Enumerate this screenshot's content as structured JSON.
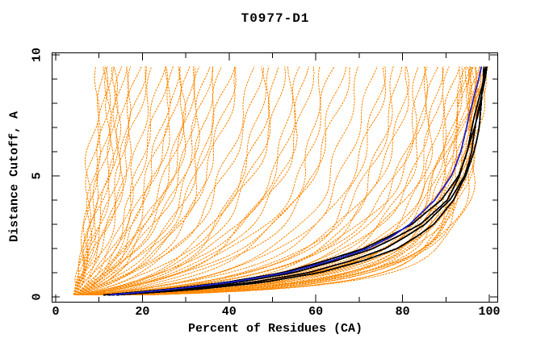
{
  "title": "T0977-D1",
  "x_axis": {
    "label": "Percent of Residues (CA)",
    "tick_labels": [
      "0",
      "20",
      "40",
      "60",
      "80",
      "100"
    ],
    "tick_values": [
      0,
      20,
      40,
      60,
      80,
      100
    ],
    "minor_tick_step": 10
  },
  "y_axis": {
    "label": "Distance Cutoff, A",
    "tick_labels": [
      "0",
      "5",
      "10"
    ],
    "tick_values": [
      0,
      5,
      10
    ],
    "minor_tick_step": 1
  },
  "colors": {
    "background": "#ffffff",
    "axis": "#000000",
    "model_curves": "#ff8800",
    "reference_curves": "#000000",
    "highlight_curve": "#2222cc"
  },
  "chart_data": {
    "type": "line",
    "title": "T0977-D1",
    "xlabel": "Percent of Residues (CA)",
    "ylabel": "Distance Cutoff, A",
    "xlim": [
      0,
      102
    ],
    "ylim": [
      0,
      10.3
    ],
    "x_major_ticks": [
      0,
      20,
      40,
      60,
      80,
      100
    ],
    "x_minor_step": 10,
    "y_major_ticks": [
      0,
      5,
      10
    ],
    "y_minor_step": 1,
    "grid": false,
    "legend": "none",
    "series": {
      "orange_model_curves": {
        "color": "#ff8800",
        "count": 87,
        "format": "[percent_reached_at_cutoff_9.6, shape_k] with x(y) = 4 + (end-4) * (y/(y+k)) * ((9.6+k)/9.6); curves fan out from (4, 0.1)",
        "curves": [
          [
            9.5,
            8
          ],
          [
            10.5,
            10
          ],
          [
            11,
            6
          ],
          [
            12,
            12
          ],
          [
            12.5,
            7
          ],
          [
            13,
            9
          ],
          [
            14,
            5
          ],
          [
            14.5,
            8
          ],
          [
            15.5,
            6
          ],
          [
            16,
            11
          ],
          [
            17,
            7
          ],
          [
            18,
            4.5
          ],
          [
            19,
            9
          ],
          [
            20,
            6
          ],
          [
            21,
            10
          ],
          [
            22,
            4
          ],
          [
            24,
            5
          ],
          [
            25,
            6
          ],
          [
            26,
            3
          ],
          [
            27,
            4.5
          ],
          [
            28,
            3.5
          ],
          [
            29,
            6
          ],
          [
            30,
            2.5
          ],
          [
            31,
            4
          ],
          [
            32,
            3
          ],
          [
            33,
            5
          ],
          [
            34,
            3.6
          ],
          [
            35,
            2.4
          ],
          [
            36,
            4.4
          ],
          [
            37,
            2.8
          ],
          [
            38,
            2.2
          ],
          [
            40,
            3.8
          ],
          [
            41,
            2.6
          ],
          [
            42,
            3.2
          ],
          [
            45,
            2.4
          ],
          [
            47,
            3
          ],
          [
            48,
            1.6
          ],
          [
            50,
            2.2
          ],
          [
            51,
            1.8
          ],
          [
            53,
            2.6
          ],
          [
            55,
            1.4
          ],
          [
            57,
            2
          ],
          [
            58,
            1.6
          ],
          [
            60,
            2.3
          ],
          [
            62,
            1.2
          ],
          [
            64,
            1.9
          ],
          [
            66,
            1.5
          ],
          [
            68,
            2.1
          ],
          [
            70,
            1.3
          ],
          [
            73,
            1.3
          ],
          [
            75,
            0.9
          ],
          [
            76,
            1.35
          ],
          [
            78,
            0.8
          ],
          [
            79,
            1.15
          ],
          [
            81,
            0.95
          ],
          [
            82,
            1.3
          ],
          [
            84,
            0.8
          ],
          [
            85,
            1.05
          ],
          [
            86,
            0.7
          ],
          [
            87,
            1.2
          ],
          [
            88,
            0.9
          ],
          [
            89,
            0.65
          ],
          [
            90,
            1
          ],
          [
            91,
            0.8
          ],
          [
            92,
            0.6
          ],
          [
            93,
            0.7
          ],
          [
            93.5,
            0.5
          ],
          [
            94,
            0.8
          ],
          [
            94.5,
            0.6
          ],
          [
            95,
            0.45
          ],
          [
            95.5,
            0.75
          ],
          [
            96,
            0.55
          ],
          [
            96.5,
            0.4
          ],
          [
            97,
            0.65
          ],
          [
            97.3,
            0.5
          ],
          [
            97.6,
            0.8
          ],
          [
            98,
            0.45
          ],
          [
            98.2,
            0.6
          ],
          [
            98.5,
            0.38
          ],
          [
            98.8,
            0.7
          ],
          [
            99,
            0.5
          ],
          [
            99.2,
            0.36
          ],
          [
            98.4,
            0.55
          ],
          [
            97.8,
            0.42
          ],
          [
            96.8,
            0.85
          ],
          [
            95.8,
            0.36
          ],
          [
            94.8,
            1
          ]
        ]
      },
      "black_reference_curves": {
        "color": "#000000",
        "format": "control points [cutoff_A, percent_residues]",
        "curves": [
          [
            [
              0.08,
              13
            ],
            [
              0.3,
              30
            ],
            [
              0.6,
              45
            ],
            [
              1,
              58
            ],
            [
              1.5,
              68
            ],
            [
              2,
              76
            ],
            [
              2.5,
              81
            ],
            [
              3,
              85.5
            ],
            [
              4,
              91
            ],
            [
              5,
              94
            ],
            [
              6,
              95.8
            ],
            [
              7,
              97
            ],
            [
              8,
              98
            ],
            [
              9,
              98.8
            ],
            [
              9.6,
              99.2
            ]
          ],
          [
            [
              0.08,
              12
            ],
            [
              0.3,
              27
            ],
            [
              0.6,
              42
            ],
            [
              1,
              55
            ],
            [
              1.5,
              65
            ],
            [
              2,
              73.5
            ],
            [
              2.5,
              79
            ],
            [
              3,
              84
            ],
            [
              4,
              90
            ],
            [
              5,
              93.2
            ],
            [
              6,
              95.2
            ],
            [
              7,
              96.6
            ],
            [
              8,
              97.7
            ],
            [
              9,
              98.6
            ],
            [
              9.6,
              99
            ]
          ],
          [
            [
              0.08,
              14
            ],
            [
              0.3,
              32
            ],
            [
              0.6,
              48
            ],
            [
              1,
              61
            ],
            [
              1.5,
              71
            ],
            [
              2,
              78.5
            ],
            [
              2.5,
              83
            ],
            [
              3,
              87
            ],
            [
              4,
              92
            ],
            [
              5,
              94.8
            ],
            [
              6,
              96.3
            ],
            [
              7,
              97.4
            ],
            [
              8,
              98.3
            ],
            [
              9,
              99
            ],
            [
              9.6,
              99.4
            ]
          ],
          [
            [
              0.08,
              11
            ],
            [
              0.3,
              25
            ],
            [
              0.6,
              39
            ],
            [
              1,
              52
            ],
            [
              1.5,
              62
            ],
            [
              2,
              71
            ],
            [
              2.5,
              77
            ],
            [
              3,
              82.5
            ],
            [
              4,
              89
            ],
            [
              5,
              92.6
            ],
            [
              6,
              94.8
            ],
            [
              7,
              96.3
            ],
            [
              8,
              97.5
            ],
            [
              9,
              98.5
            ],
            [
              9.6,
              98.9
            ]
          ]
        ]
      },
      "blue_highlight_curve": {
        "color": "#2222cc",
        "format": "control points [cutoff_A, percent_residues]",
        "points": [
          [
            0.08,
            12.5
          ],
          [
            0.3,
            26
          ],
          [
            0.6,
            40
          ],
          [
            1,
            53
          ],
          [
            1.5,
            63.5
          ],
          [
            2,
            72
          ],
          [
            2.5,
            77.8
          ],
          [
            3,
            82
          ],
          [
            4,
            87.5
          ],
          [
            5,
            91
          ],
          [
            6,
            93.2
          ],
          [
            7,
            94.9
          ],
          [
            8,
            96.4
          ],
          [
            9,
            97.6
          ],
          [
            9.6,
            98.1
          ]
        ]
      }
    }
  }
}
